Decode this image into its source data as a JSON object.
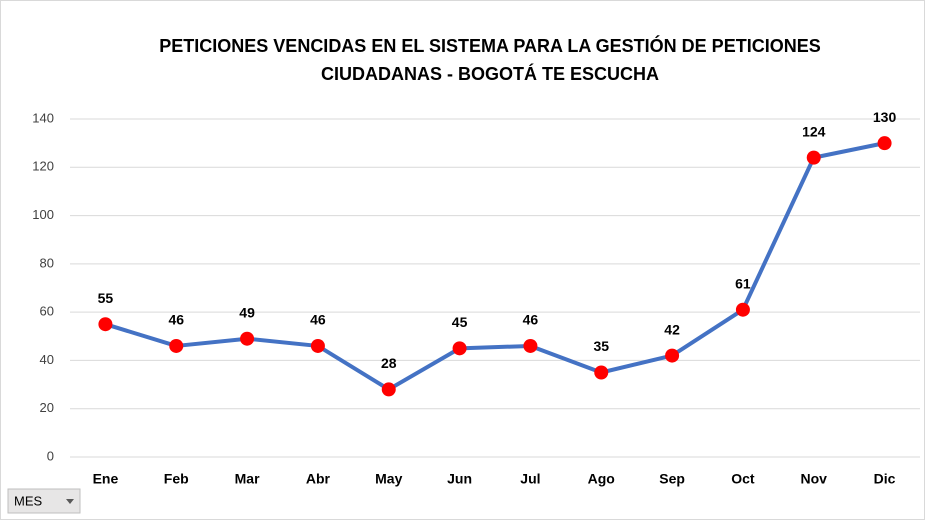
{
  "chart_data": {
    "type": "line",
    "title": [
      "PETICIONES VENCIDAS EN EL SISTEMA PARA LA GESTIÓN DE PETICIONES",
      "CIUDADANAS - BOGOTÁ TE ESCUCHA"
    ],
    "categories": [
      "Ene",
      "Feb",
      "Mar",
      "Abr",
      "May",
      "Jun",
      "Jul",
      "Ago",
      "Sep",
      "Oct",
      "Nov",
      "Dic"
    ],
    "values": [
      55,
      46,
      49,
      46,
      28,
      45,
      46,
      35,
      42,
      61,
      124,
      130
    ],
    "color": "#4472c4",
    "marker_color": "#ff0000",
    "ylim": [
      0,
      140
    ],
    "yticks": [
      0,
      20,
      40,
      60,
      80,
      100,
      120,
      140
    ],
    "grid": true
  },
  "field_button": {
    "label": "MES"
  }
}
